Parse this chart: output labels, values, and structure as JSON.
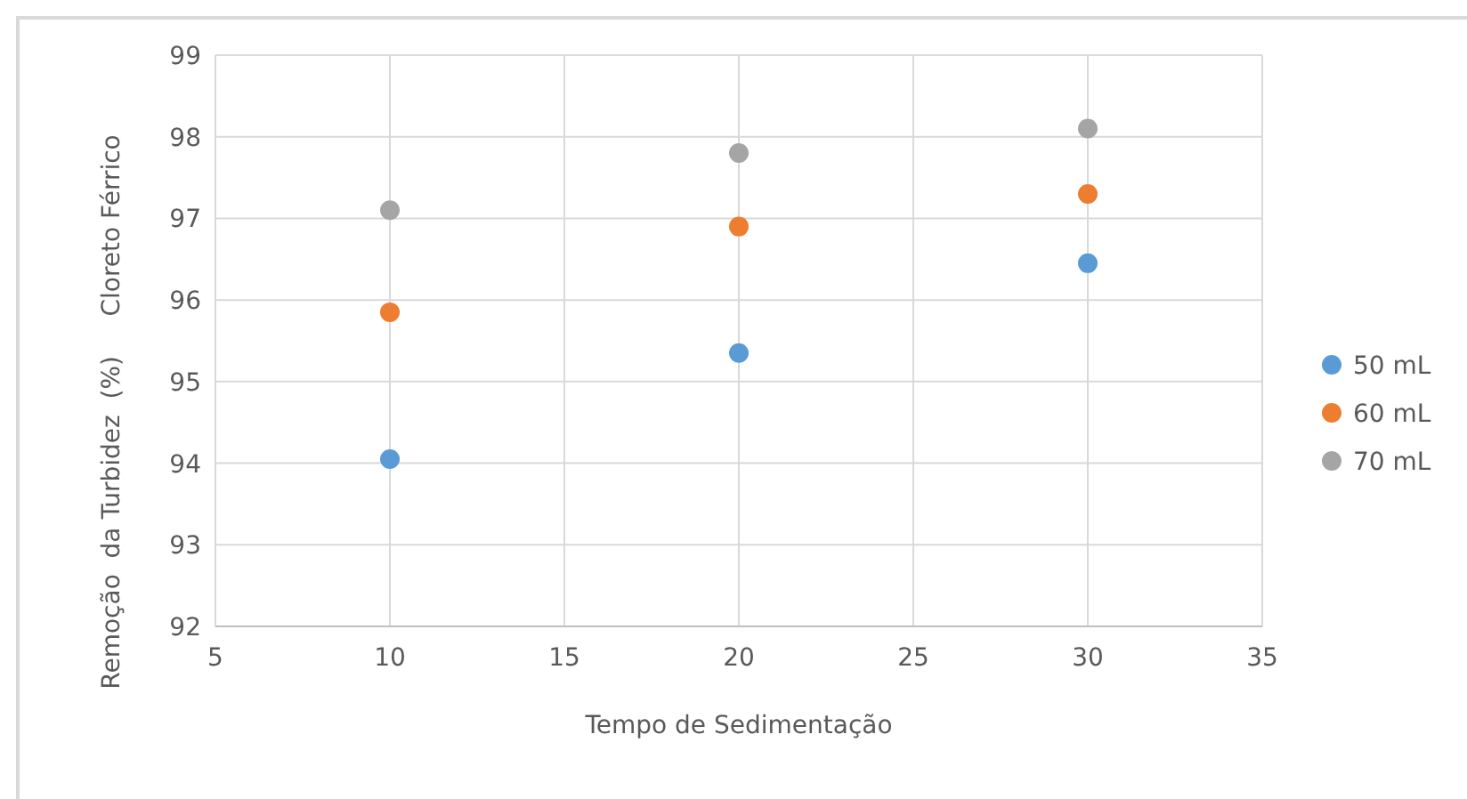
{
  "chart_data": {
    "type": "scatter",
    "xlabel": "Tempo de Sedimentação",
    "ylabel": "Remoção  da Turbidez  (%)     Cloreto Férrico",
    "x": [
      10,
      20,
      30
    ],
    "series": [
      {
        "name": "50 mL",
        "color": "#5b9bd5",
        "values": [
          94.05,
          95.35,
          96.45
        ]
      },
      {
        "name": "60 mL",
        "color": "#ed7d31",
        "values": [
          95.85,
          96.9,
          97.3
        ]
      },
      {
        "name": "70 mL",
        "color": "#a5a5a5",
        "values": [
          97.1,
          97.8,
          98.1
        ]
      }
    ],
    "xlim": [
      5,
      35
    ],
    "xticks": [
      5,
      10,
      15,
      20,
      25,
      30,
      35
    ],
    "ylim": [
      92,
      99
    ],
    "yticks": [
      92,
      93,
      94,
      95,
      96,
      97,
      98,
      99
    ],
    "grid": true,
    "legend": "right",
    "marker": "circle"
  }
}
